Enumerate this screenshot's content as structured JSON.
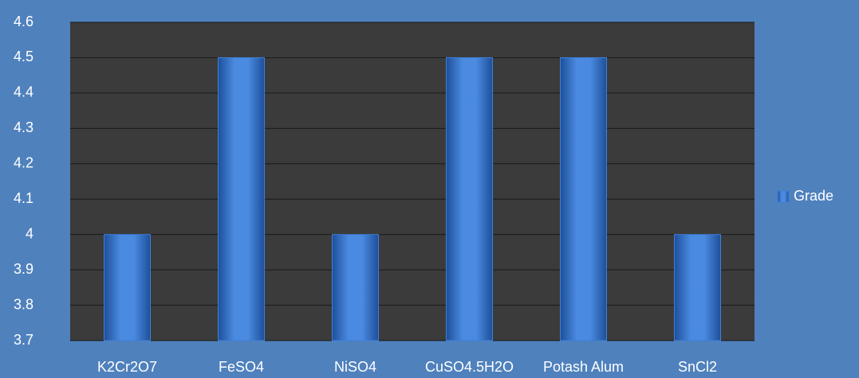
{
  "chart_data": {
    "type": "bar",
    "categories": [
      "K2Cr2O7",
      "FeSO4",
      "NiSO4",
      "CuSO4.5H2O",
      "Potash Alum",
      "SnCl2"
    ],
    "series": [
      {
        "name": "Grade",
        "color": "#3f7fd6",
        "values": [
          4,
          4.5,
          4,
          4.5,
          4.5,
          4
        ]
      }
    ],
    "ylim": [
      3.7,
      4.6
    ],
    "yticks": [
      3.7,
      3.8,
      3.9,
      4,
      4.1,
      4.2,
      4.3,
      4.4,
      4.5,
      4.6
    ],
    "grid": true,
    "legend": "right"
  }
}
